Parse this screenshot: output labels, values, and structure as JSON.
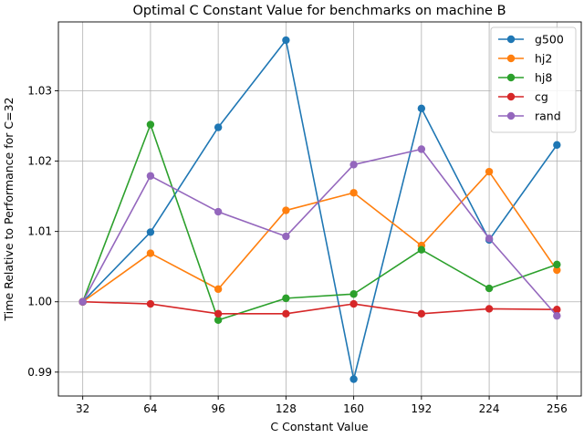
{
  "chart_data": {
    "type": "line",
    "title": "Optimal C Constant Value for benchmarks on machine B",
    "xlabel": "C Constant Value",
    "ylabel": "Time Relative to Performance for C=32",
    "x": [
      32,
      64,
      96,
      128,
      160,
      192,
      224,
      256
    ],
    "x_ticks": [
      "32",
      "64",
      "96",
      "128",
      "160",
      "192",
      "224",
      "256"
    ],
    "y_ticks": [
      "0.99",
      "1.00",
      "1.01",
      "1.02",
      "1.03"
    ],
    "y_tick_values": [
      0.99,
      1.0,
      1.01,
      1.02,
      1.03
    ],
    "xlim": [
      20.5,
      267.5
    ],
    "ylim": [
      0.9866,
      1.0398
    ],
    "grid": true,
    "legend_position": "upper right",
    "marker": "circle",
    "series": [
      {
        "name": "g500",
        "color": "#1f77b4",
        "values": [
          1.0,
          1.0099,
          1.0248,
          1.0372,
          0.989,
          1.0275,
          1.0088,
          1.0223
        ]
      },
      {
        "name": "hj2",
        "color": "#ff7f0e",
        "values": [
          1.0,
          1.0069,
          1.0018,
          1.013,
          1.0155,
          1.008,
          1.0185,
          1.0045
        ]
      },
      {
        "name": "hj8",
        "color": "#2ca02c",
        "values": [
          1.0,
          1.0252,
          0.9974,
          1.0005,
          1.0011,
          1.0074,
          1.0019,
          1.0053
        ]
      },
      {
        "name": "cg",
        "color": "#d62728",
        "values": [
          1.0,
          0.9997,
          0.9983,
          0.9983,
          0.9997,
          0.9983,
          0.999,
          0.9989
        ]
      },
      {
        "name": "rand",
        "color": "#9467bd",
        "values": [
          1.0,
          1.0179,
          1.0128,
          1.0093,
          1.0195,
          1.0217,
          1.009,
          0.998
        ]
      }
    ]
  }
}
